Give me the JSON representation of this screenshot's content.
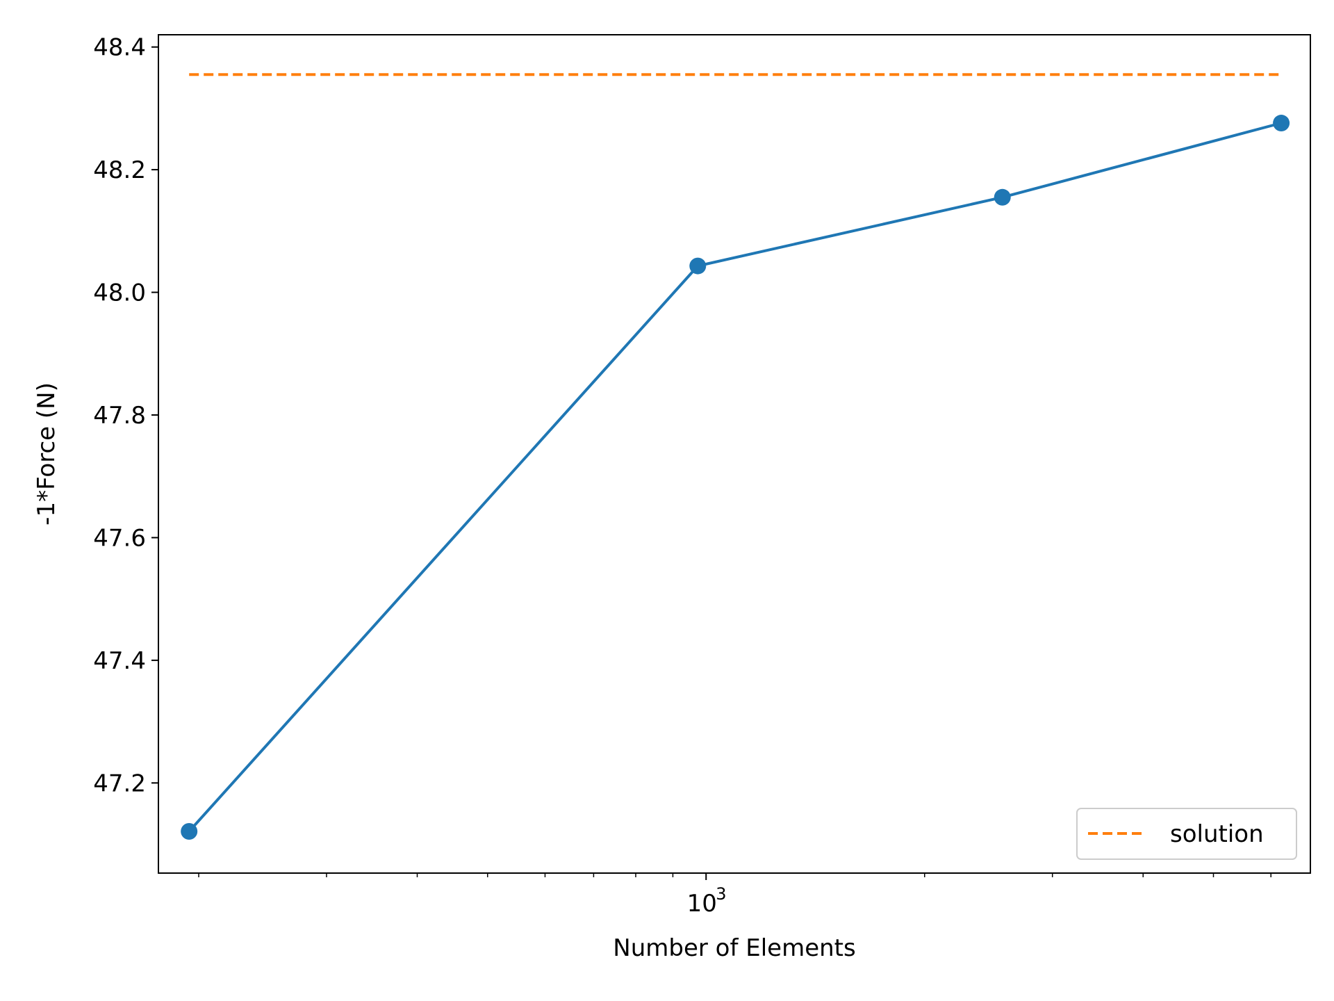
{
  "chart_data": {
    "type": "line",
    "xscale": "log",
    "xlabel": "Number of Elements",
    "ylabel": "-1*Force (N)",
    "xlim": [
      176,
      6800
    ],
    "ylim": [
      47.053,
      48.42
    ],
    "x_major_ticks": [
      {
        "value": 1000,
        "base": "10",
        "exponent": "3"
      }
    ],
    "x_minor_ticks": [
      200,
      300,
      400,
      500,
      600,
      700,
      800,
      900,
      2000,
      3000,
      4000,
      5000,
      6000
    ],
    "y_ticks": [
      "47.2",
      "47.4",
      "47.6",
      "47.8",
      "48.0",
      "48.2",
      "48.4"
    ],
    "series": [
      {
        "name": "",
        "style": "solid-line-with-circle-markers",
        "color": "#1f77b4",
        "x": [
          194,
          974,
          2560,
          6200
        ],
        "y": [
          47.121,
          48.043,
          48.155,
          48.276
        ]
      },
      {
        "name": "solution",
        "style": "dashed",
        "color": "#ff7f0e",
        "x": [
          194,
          6200
        ],
        "y": [
          48.355,
          48.355
        ]
      }
    ],
    "legend": {
      "position": "lower-right",
      "entries": [
        "solution"
      ]
    },
    "grid": false
  }
}
